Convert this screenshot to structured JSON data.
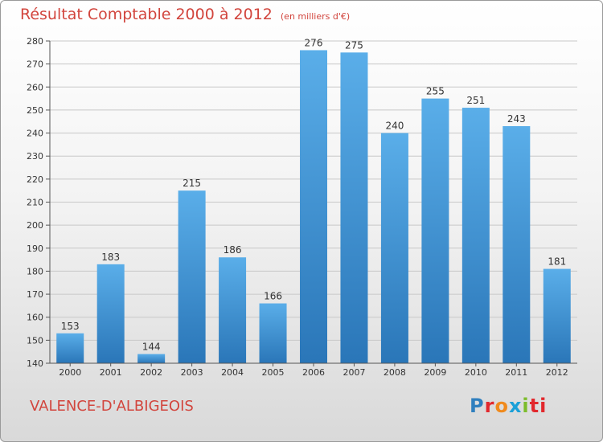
{
  "title": "Résultat Comptable 2000 à 2012",
  "subtitle": "(en milliers d'€)",
  "commune": "VALENCE-D'ALBIGEOIS",
  "logo": {
    "letters": [
      "P",
      "r",
      "o",
      "x",
      "i",
      "ti"
    ],
    "colors": [
      "#2f7fbe",
      "#e2282d",
      "#f08a1c",
      "#1aa0d8",
      "#7cbc2b",
      "#e2282d"
    ]
  },
  "chart_data": {
    "type": "bar",
    "title": "Résultat Comptable 2000 à 2012",
    "xlabel": "",
    "ylabel": "",
    "categories": [
      "2000",
      "2001",
      "2002",
      "2003",
      "2004",
      "2005",
      "2006",
      "2007",
      "2008",
      "2009",
      "2010",
      "2011",
      "2012"
    ],
    "values": [
      153,
      183,
      144,
      215,
      186,
      166,
      276,
      275,
      240,
      255,
      251,
      243,
      181
    ],
    "ylim": [
      140,
      280
    ],
    "yticks": [
      140,
      150,
      160,
      170,
      180,
      190,
      200,
      210,
      220,
      230,
      240,
      250,
      260,
      270,
      280
    ],
    "grid": true,
    "bar_color": "#4a9fe0"
  }
}
